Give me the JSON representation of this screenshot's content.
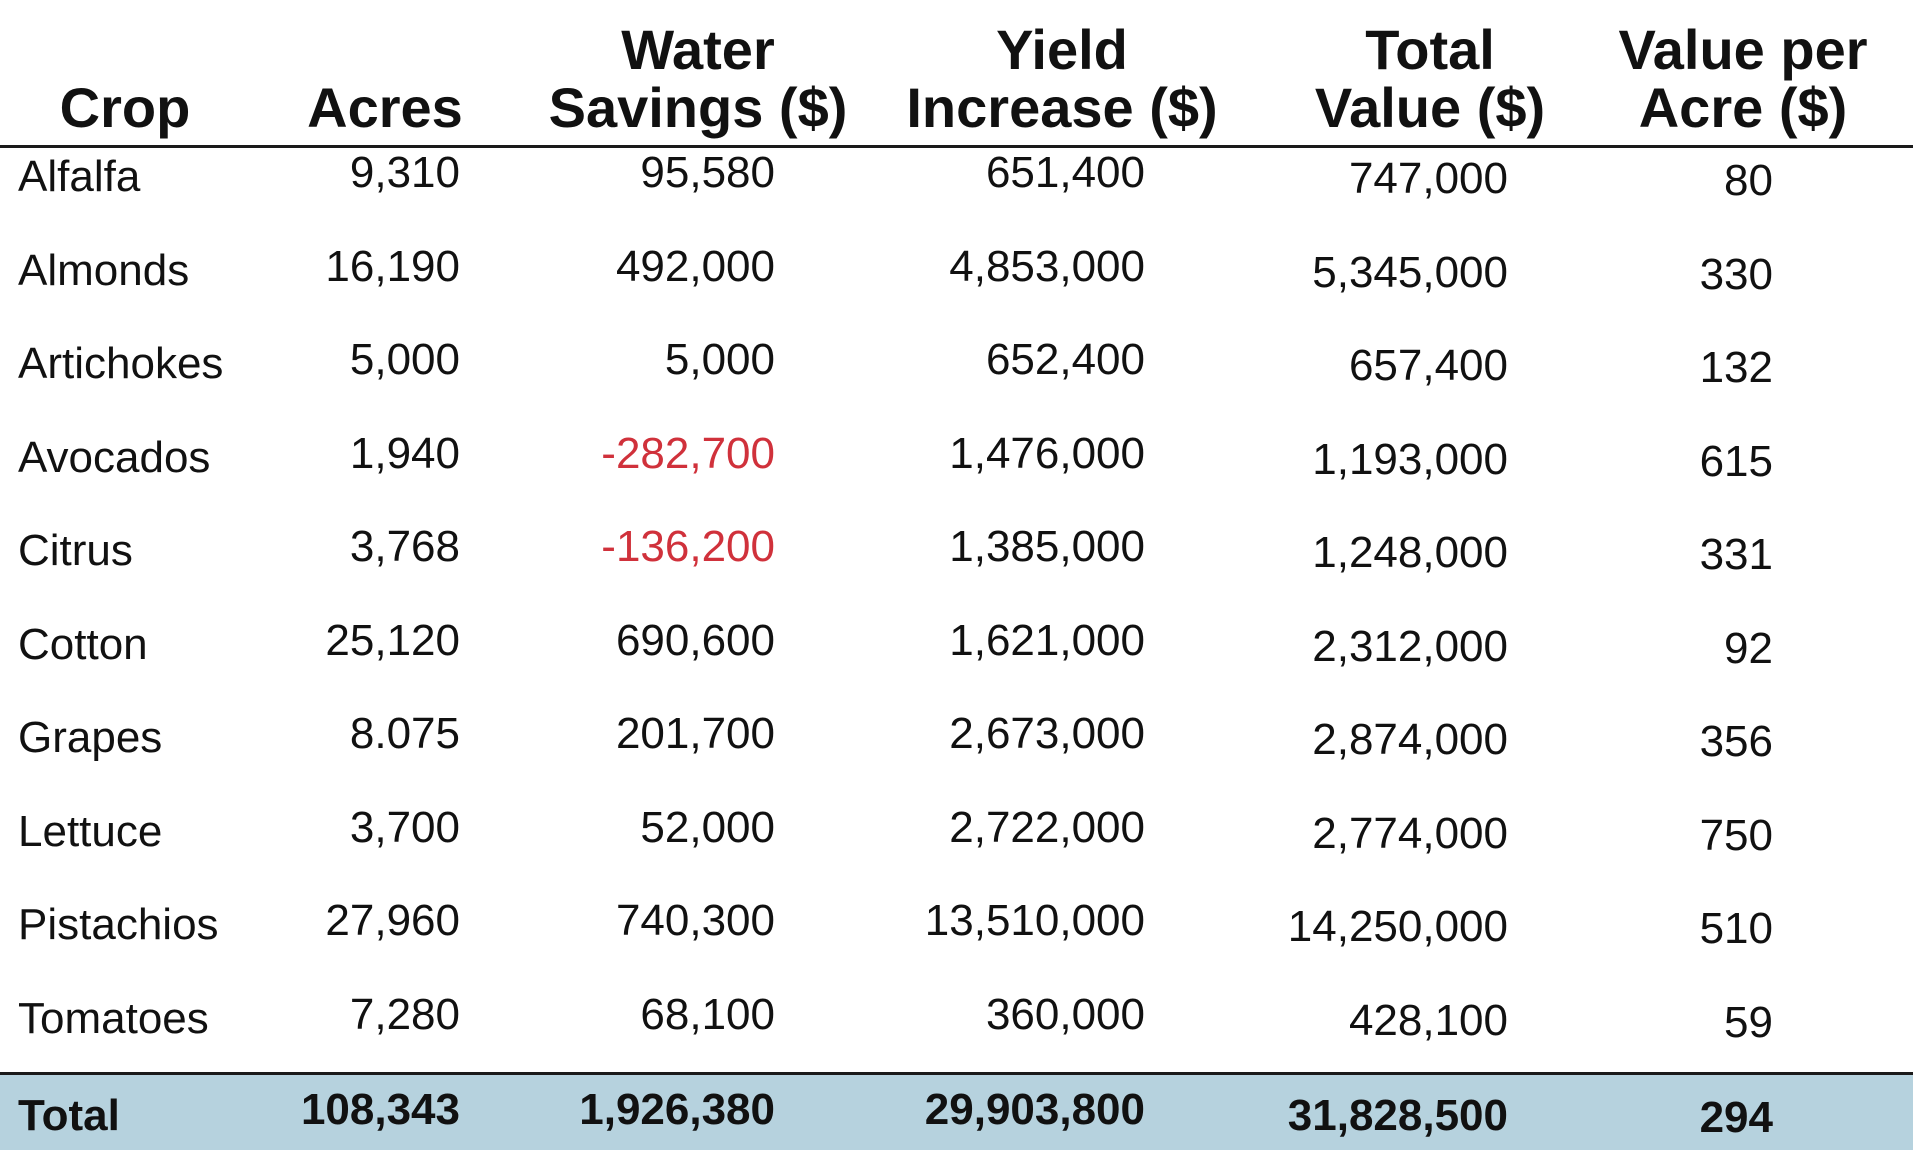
{
  "headers": {
    "crop": [
      "Crop"
    ],
    "acres": [
      "Acres"
    ],
    "water": [
      "Water",
      "Savings ($)"
    ],
    "yield": [
      "Yield",
      "Increase ($)"
    ],
    "total": [
      "Total",
      "Value ($)"
    ],
    "per_acre": [
      "Value per",
      "Acre ($)"
    ]
  },
  "rows": [
    {
      "crop": "Alfalfa",
      "acres": "9,310",
      "water": "95,580",
      "water_negative": false,
      "yield": "651,400",
      "total": "747,000",
      "per_acre": "80"
    },
    {
      "crop": "Almonds",
      "acres": "16,190",
      "water": "492,000",
      "water_negative": false,
      "yield": "4,853,000",
      "total": "5,345,000",
      "per_acre": "330"
    },
    {
      "crop": "Artichokes",
      "acres": "5,000",
      "water": "5,000",
      "water_negative": false,
      "yield": "652,400",
      "total": "657,400",
      "per_acre": "132"
    },
    {
      "crop": "Avocados",
      "acres": "1,940",
      "water": "-282,700",
      "water_negative": true,
      "yield": "1,476,000",
      "total": "1,193,000",
      "per_acre": "615"
    },
    {
      "crop": "Citrus",
      "acres": "3,768",
      "water": "-136,200",
      "water_negative": true,
      "yield": "1,385,000",
      "total": "1,248,000",
      "per_acre": "331"
    },
    {
      "crop": "Cotton",
      "acres": "25,120",
      "water": "690,600",
      "water_negative": false,
      "yield": "1,621,000",
      "total": "2,312,000",
      "per_acre": "92"
    },
    {
      "crop": "Grapes",
      "acres": "8.075",
      "water": "201,700",
      "water_negative": false,
      "yield": "2,673,000",
      "total": "2,874,000",
      "per_acre": "356"
    },
    {
      "crop": "Lettuce",
      "acres": "3,700",
      "water": "52,000",
      "water_negative": false,
      "yield": "2,722,000",
      "total": "2,774,000",
      "per_acre": "750"
    },
    {
      "crop": "Pistachios",
      "acres": "27,960",
      "water": "740,300",
      "water_negative": false,
      "yield": "13,510,000",
      "total": "14,250,000",
      "per_acre": "510"
    },
    {
      "crop": "Tomatoes",
      "acres": "7,280",
      "water": "68,100",
      "water_negative": false,
      "yield": "360,000",
      "total": "428,100",
      "per_acre": "59"
    }
  ],
  "total_row": {
    "crop": "Total",
    "acres": "108,343",
    "water": "1,926,380",
    "yield": "29,903,800",
    "total": "31,828,500",
    "per_acre": "294"
  },
  "colors": {
    "negative": "#d0313b",
    "total_row_background": "#b6d2de",
    "rule": "#1a1a1a"
  }
}
